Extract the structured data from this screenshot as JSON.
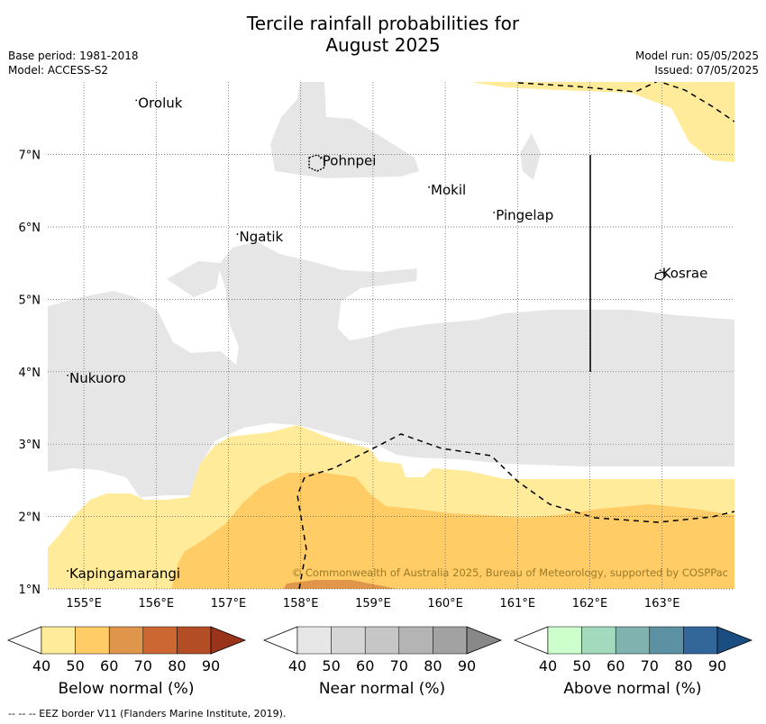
{
  "title_line1": "Tercile rainfall probabilities for",
  "title_line2": "August 2025",
  "base_period": "Base period: 1981-2018",
  "model": "Model: ACCESS-S2",
  "model_run": "Model run: 05/05/2025",
  "issued": "Issued: 07/05/2025",
  "copyright": "© Commonwealth of Australia 2025, Bureau of Meteorology, supported by COSPPac",
  "footnote": "-- -- -- EEZ border V11 (Flanders Marine Institute, 2019).",
  "map": {
    "lat_labels": [
      "1°N",
      "2°N",
      "3°N",
      "4°N",
      "5°N",
      "6°N",
      "7°N"
    ],
    "lon_labels": [
      "155°E",
      "156°E",
      "157°E",
      "158°E",
      "159°E",
      "160°E",
      "161°E",
      "162°E",
      "163°E"
    ],
    "places": [
      {
        "name": "Oroluk",
        "lon": 155.75,
        "lat": 7.65
      },
      {
        "name": "Pohnpei",
        "lon": 158.3,
        "lat": 6.85
      },
      {
        "name": "Mokil",
        "lon": 159.8,
        "lat": 6.45
      },
      {
        "name": "Pingelap",
        "lon": 160.7,
        "lat": 6.1
      },
      {
        "name": "Ngatik",
        "lon": 157.15,
        "lat": 5.8
      },
      {
        "name": "Kosrae",
        "lon": 163.0,
        "lat": 5.3
      },
      {
        "name": "Nukuoro",
        "lon": 154.8,
        "lat": 3.85
      },
      {
        "name": "Kapingamarangi",
        "lon": 154.8,
        "lat": 1.15
      }
    ]
  },
  "colorbars": [
    {
      "label": "Below normal (%)",
      "ticks": [
        "40",
        "50",
        "60",
        "70",
        "80",
        "90"
      ],
      "colors": [
        "#ffffff",
        "#ffeb99",
        "#ffcc66",
        "#e0964a",
        "#cc6633",
        "#b34d26",
        "#99331a"
      ]
    },
    {
      "label": "Near normal (%)",
      "ticks": [
        "40",
        "50",
        "60",
        "70",
        "80",
        "90"
      ],
      "colors": [
        "#ffffff",
        "#e6e6e6",
        "#d6d6d6",
        "#c6c6c6",
        "#b4b4b4",
        "#a2a2a2",
        "#888888"
      ]
    },
    {
      "label": "Above normal (%)",
      "ticks": [
        "40",
        "50",
        "60",
        "70",
        "80",
        "90"
      ],
      "colors": [
        "#ffffff",
        "#ccffcc",
        "#a3d9bc",
        "#80b3b0",
        "#5c91a3",
        "#336699",
        "#1a4d80"
      ]
    }
  ]
}
